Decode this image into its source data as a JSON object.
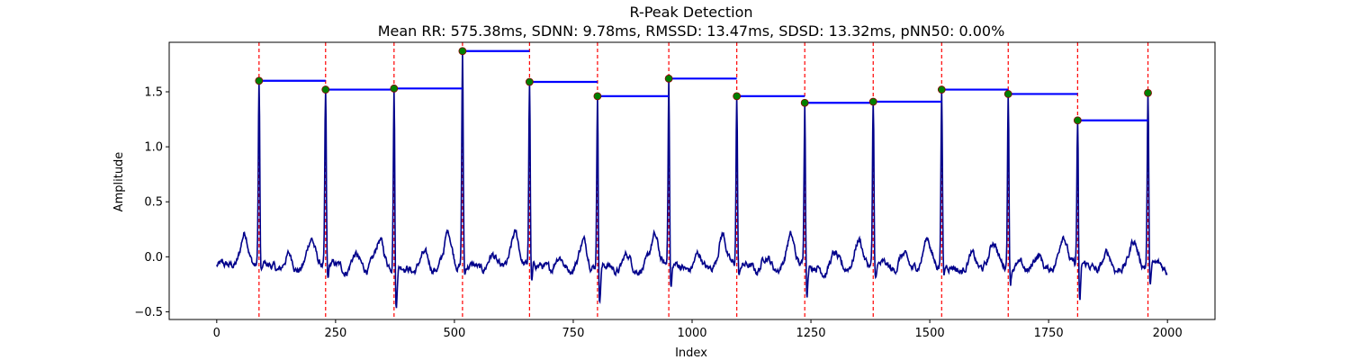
{
  "chart_data": {
    "type": "line",
    "title": "R-Peak Detection",
    "subtitle": "Mean RR: 575.38ms, SDNN: 9.78ms, RMSSD: 13.47ms, SDSD: 13.32ms, pNN50: 0.00%",
    "xlabel": "Index",
    "ylabel": "Amplitude",
    "xlim": [
      -100,
      2100
    ],
    "ylim": [
      -0.57,
      1.95
    ],
    "xticks": [
      0,
      250,
      500,
      750,
      1000,
      1250,
      1500,
      1750,
      2000
    ],
    "yticks": [
      -0.5,
      0.0,
      0.5,
      1.0,
      1.5
    ],
    "ytick_labels": [
      "−0.5",
      "0.0",
      "0.5",
      "1.0",
      "1.5"
    ],
    "grid": false,
    "colors": {
      "signal": "#00008b",
      "peak_marker": "#008000",
      "peak_line": "#ff0000",
      "rr_bar": "#0000ff"
    },
    "signal_length": 2000,
    "r_peaks": {
      "x": [
        89,
        229,
        373,
        517,
        658,
        801,
        951,
        1094,
        1237,
        1381,
        1525,
        1665,
        1811,
        1959
      ],
      "y": [
        1.6,
        1.52,
        1.53,
        1.87,
        1.59,
        1.46,
        1.62,
        1.46,
        1.4,
        1.41,
        1.52,
        1.48,
        1.24,
        1.49
      ]
    },
    "rr_intervals": [
      {
        "x0": 89,
        "x1": 229,
        "y": 1.6
      },
      {
        "x0": 229,
        "x1": 373,
        "y": 1.52
      },
      {
        "x0": 373,
        "x1": 517,
        "y": 1.53
      },
      {
        "x0": 517,
        "x1": 658,
        "y": 1.87
      },
      {
        "x0": 658,
        "x1": 801,
        "y": 1.59
      },
      {
        "x0": 801,
        "x1": 951,
        "y": 1.46
      },
      {
        "x0": 951,
        "x1": 1094,
        "y": 1.62
      },
      {
        "x0": 1094,
        "x1": 1237,
        "y": 1.46
      },
      {
        "x0": 1237,
        "x1": 1381,
        "y": 1.4
      },
      {
        "x0": 1381,
        "x1": 1525,
        "y": 1.41
      },
      {
        "x0": 1525,
        "x1": 1665,
        "y": 1.52
      },
      {
        "x0": 1665,
        "x1": 1811,
        "y": 1.48
      },
      {
        "x0": 1811,
        "x1": 1959,
        "y": 1.24
      }
    ],
    "beat_post_dip": [
      -0.15,
      -0.23,
      -0.45,
      -0.16,
      -0.25,
      -0.4,
      -0.28,
      -0.19,
      -0.3,
      -0.22,
      -0.16,
      -0.21,
      -0.44,
      -0.24
    ],
    "beat_t_wave": [
      0.25,
      0.2,
      0.18,
      0.25,
      0.23,
      0.18,
      0.21,
      0.24,
      0.22,
      0.19,
      0.2,
      0.17,
      0.25,
      0.18
    ]
  }
}
